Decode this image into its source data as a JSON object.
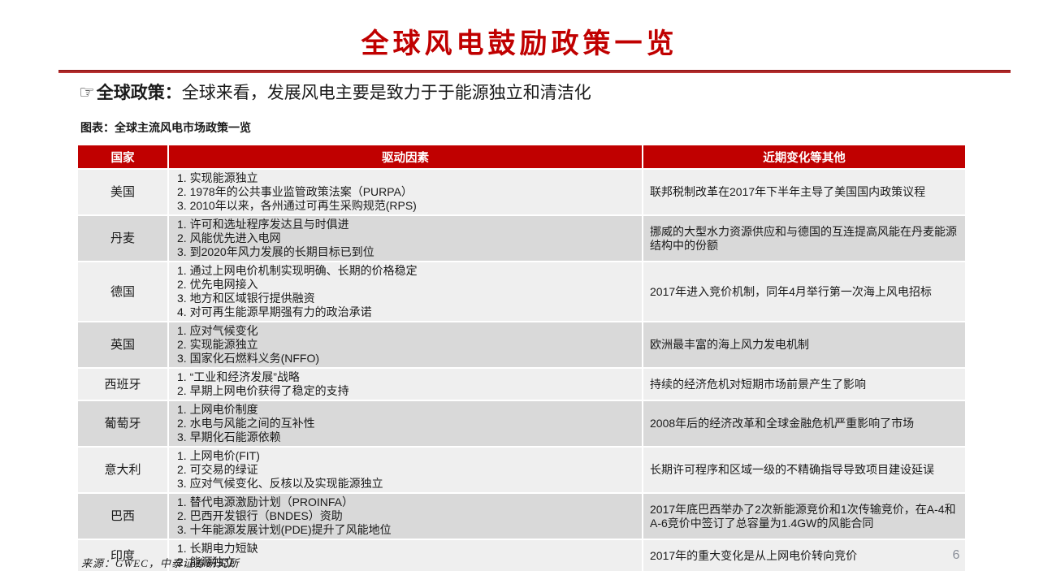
{
  "slide": {
    "title": "全球风电鼓励政策一览",
    "source": "来源：GWEC，中泰证券研究所",
    "page_number": "6"
  },
  "subtitle": {
    "icon": "☞",
    "label": "全球政策：",
    "text": "全球来看，发展风电主要是致力于于能源独立和清洁化"
  },
  "table": {
    "caption": "图表：全球主流风电市场政策一览",
    "headers": [
      "国家",
      "驱动因素",
      "近期变化等其他"
    ],
    "rows": [
      {
        "country": "美国",
        "drivers": [
          "1. 实现能源独立",
          "2. 1978年的公共事业监管政策法案（PURPA）",
          "3. 2010年以来，各州通过可再生采购规范(RPS)"
        ],
        "recent": "联邦税制改革在2017年下半年主导了美国国内政策议程"
      },
      {
        "country": "丹麦",
        "drivers": [
          "1. 许可和选址程序发达且与时俱进",
          "2. 风能优先进入电网",
          "3. 到2020年风力发展的长期目标已到位"
        ],
        "recent": "挪威的大型水力资源供应和与德国的互连提高风能在丹麦能源结构中的份额"
      },
      {
        "country": "德国",
        "drivers": [
          "1. 通过上网电价机制实现明确、长期的价格稳定",
          "2. 优先电网接入",
          "3. 地方和区域银行提供融资",
          "4. 对可再生能源早期强有力的政治承诺"
        ],
        "recent": "2017年进入竞价机制，同年4月举行第一次海上风电招标"
      },
      {
        "country": "英国",
        "drivers": [
          "1. 应对气候变化",
          "2. 实现能源独立",
          "3. 国家化石燃料义务(NFFO)"
        ],
        "recent": "欧洲最丰富的海上风力发电机制"
      },
      {
        "country": "西班牙",
        "drivers": [
          "1. “工业和经济发展”战略",
          "2. 早期上网电价获得了稳定的支持"
        ],
        "recent": "持续的经济危机对短期市场前景产生了影响"
      },
      {
        "country": "葡萄牙",
        "drivers": [
          "1. 上网电价制度",
          "2. 水电与风能之间的互补性",
          "3. 早期化石能源依赖"
        ],
        "recent": "2008年后的经济改革和全球金融危机严重影响了市场"
      },
      {
        "country": "意大利",
        "drivers": [
          "1. 上网电价(FIT)",
          "2. 可交易的绿证",
          "3. 应对气候变化、反核以及实现能源独立"
        ],
        "recent": "长期许可程序和区域一级的不精确指导导致项目建设延误"
      },
      {
        "country": "巴西",
        "drivers": [
          "1. 替代电源激励计划（PROINFA）",
          "2. 巴西开发银行（BNDES）资助",
          "3. 十年能源发展计划(PDE)提升了风能地位"
        ],
        "recent": "2017年底巴西举办了2次新能源竞价和1次传输竞价，在A-4和A-6竞价中签订了总容量为1.4GW的风能合同"
      },
      {
        "country": "印度",
        "drivers": [
          "1. 长期电力短缺",
          "2. 能源独立"
        ],
        "recent": "2017年的重大变化是从上网电价转向竞价"
      }
    ]
  },
  "colors": {
    "accent_red": "#C00000",
    "header_bg": "#C00000",
    "row_light": "#EFEFEF",
    "row_dark": "#D9D9D9"
  }
}
